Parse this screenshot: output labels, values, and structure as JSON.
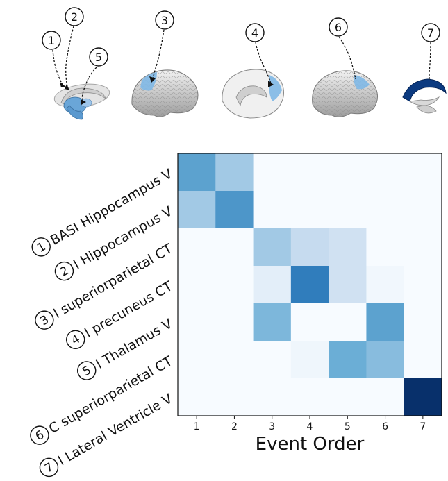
{
  "chart_data": {
    "type": "heatmap",
    "xlabel": "Event Order",
    "x_ticks": [
      "1",
      "2",
      "3",
      "4",
      "5",
      "6",
      "7"
    ],
    "y_labels": [
      {
        "num": "1",
        "label": "BASI Hippocampus V"
      },
      {
        "num": "2",
        "label": "l Hippocampus V"
      },
      {
        "num": "3",
        "label": "l superiorparietal CT"
      },
      {
        "num": "4",
        "label": "l precuneus CT"
      },
      {
        "num": "5",
        "label": "l Thalamus V"
      },
      {
        "num": "6",
        "label": "C superiorparietal CT"
      },
      {
        "num": "7",
        "label": "l Lateral Ventricle V"
      }
    ],
    "values": [
      [
        0.55,
        0.35,
        0,
        0,
        0,
        0,
        0
      ],
      [
        0.35,
        0.6,
        0,
        0,
        0,
        0,
        0
      ],
      [
        0,
        0,
        0.35,
        0.25,
        0.2,
        0,
        0
      ],
      [
        0,
        0,
        0.1,
        0.7,
        0.2,
        0.03,
        0
      ],
      [
        0,
        0,
        0.45,
        0,
        0,
        0.55,
        0
      ],
      [
        0,
        0,
        0,
        0.04,
        0.5,
        0.42,
        0
      ],
      [
        0,
        0,
        0,
        0,
        0,
        0,
        1.0
      ]
    ],
    "colormap": [
      "#f7fbff",
      "#c6dbef",
      "#6baed6",
      "#2171b5",
      "#08306b"
    ]
  },
  "brain_callouts": [
    "1",
    "2",
    "5",
    "3",
    "4",
    "6",
    "7"
  ],
  "colors": {
    "highlight": "#7fb8e6",
    "highlight_dark": "#0b3a80",
    "brain": "#d4d4d4"
  }
}
